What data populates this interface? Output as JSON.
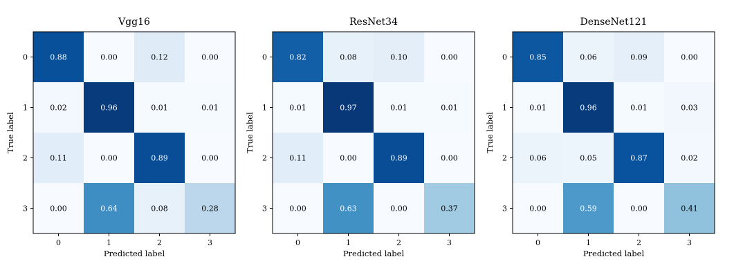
{
  "chart_data": [
    {
      "type": "heatmap",
      "title": "Vgg16",
      "xlabel": "Predicted label",
      "ylabel": "True label",
      "x_categories": [
        "0",
        "1",
        "2",
        "3"
      ],
      "y_categories": [
        "0",
        "1",
        "2",
        "3"
      ],
      "values": [
        [
          0.88,
          0.0,
          0.12,
          0.0
        ],
        [
          0.02,
          0.96,
          0.01,
          0.01
        ],
        [
          0.11,
          0.0,
          0.89,
          0.0
        ],
        [
          0.0,
          0.64,
          0.08,
          0.28
        ]
      ],
      "colormap": "Blues",
      "value_range": [
        0,
        1
      ]
    },
    {
      "type": "heatmap",
      "title": "ResNet34",
      "xlabel": "Predicted label",
      "ylabel": "True label",
      "x_categories": [
        "0",
        "1",
        "2",
        "3"
      ],
      "y_categories": [
        "0",
        "1",
        "2",
        "3"
      ],
      "values": [
        [
          0.82,
          0.08,
          0.1,
          0.0
        ],
        [
          0.01,
          0.97,
          0.01,
          0.01
        ],
        [
          0.11,
          0.0,
          0.89,
          0.0
        ],
        [
          0.0,
          0.63,
          0.0,
          0.37
        ]
      ],
      "colormap": "Blues",
      "value_range": [
        0,
        1
      ]
    },
    {
      "type": "heatmap",
      "title": "DenseNet121",
      "xlabel": "Predicted label",
      "ylabel": "True label",
      "x_categories": [
        "0",
        "1",
        "2",
        "3"
      ],
      "y_categories": [
        "0",
        "1",
        "2",
        "3"
      ],
      "values": [
        [
          0.85,
          0.06,
          0.09,
          0.0
        ],
        [
          0.01,
          0.96,
          0.01,
          0.03
        ],
        [
          0.06,
          0.05,
          0.87,
          0.02
        ],
        [
          0.0,
          0.59,
          0.0,
          0.41
        ]
      ],
      "colormap": "Blues",
      "value_range": [
        0,
        1
      ]
    }
  ]
}
